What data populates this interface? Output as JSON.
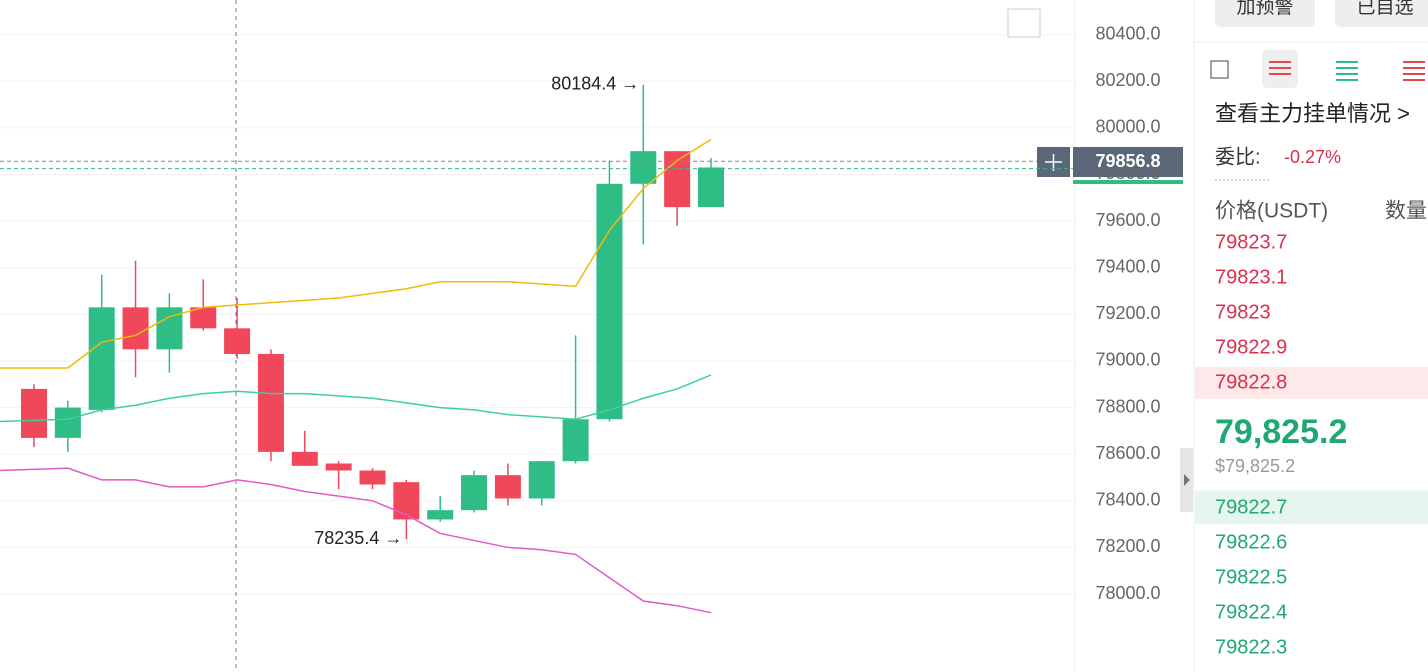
{
  "chart_data": {
    "type": "candlestick",
    "categories": [
      null,
      null,
      null,
      null,
      null,
      null,
      null,
      null,
      null,
      null,
      null,
      null,
      null,
      null,
      null,
      null,
      null,
      null,
      null,
      null,
      null
    ],
    "open": [
      78880,
      78670,
      78790,
      79230,
      79050,
      79230,
      79140,
      79030,
      78610,
      78560,
      78530,
      78480,
      78320,
      78360,
      78510,
      78410,
      78570,
      78750,
      79760,
      79900,
      79660
    ],
    "high": [
      78900,
      78830,
      79370,
      79430,
      79290,
      79350,
      79270,
      79050,
      78700,
      78570,
      78540,
      78490,
      78420,
      78530,
      78560,
      78570,
      79110,
      79860,
      80184.4,
      79900,
      79870
    ],
    "low": [
      78630,
      78610,
      78780,
      78930,
      78950,
      79130,
      79010,
      78570,
      78550,
      78450,
      78450,
      78235.4,
      78310,
      78350,
      78380,
      78380,
      78560,
      78740,
      79500,
      79580,
      79660
    ],
    "close": [
      78670,
      78800,
      79230,
      79050,
      79230,
      79140,
      79030,
      78610,
      78550,
      78530,
      78470,
      78320,
      78360,
      78510,
      78410,
      78570,
      78750,
      79760,
      79900,
      79660,
      79830
    ],
    "up_color": "#2ebd85",
    "down_color": "#f0485a",
    "series": [
      {
        "color": "#f0b90b",
        "values": [
          78970,
          78970,
          79080,
          79110,
          79190,
          79230,
          79240,
          79250,
          79260,
          79270,
          79290,
          79310,
          79340,
          79340,
          79340,
          79330,
          79320,
          79560,
          79740,
          79860,
          79950
        ]
      },
      {
        "color": "#3ecfa0",
        "values": [
          78740,
          78750,
          78790,
          78810,
          78840,
          78860,
          78870,
          78860,
          78860,
          78850,
          78840,
          78820,
          78800,
          78790,
          78770,
          78760,
          78750,
          78790,
          78840,
          78880,
          78940
        ]
      },
      {
        "color": "#e05ac8",
        "values": [
          78530,
          78540,
          78490,
          78490,
          78460,
          78460,
          78490,
          78470,
          78440,
          78420,
          78400,
          78340,
          78260,
          78230,
          78200,
          78190,
          78170,
          78070,
          77970,
          77950,
          77920
        ]
      }
    ],
    "ylim": [
      77820,
      80540
    ],
    "yticks": [
      {
        "value": 78000,
        "label": "78000.0"
      },
      {
        "value": 78200,
        "label": "78200.0"
      },
      {
        "value": 78400,
        "label": "78400.0"
      },
      {
        "value": 78600,
        "label": "78600.0"
      },
      {
        "value": 78800,
        "label": "78800.0"
      },
      {
        "value": 79000,
        "label": "79000.0"
      },
      {
        "value": 79200,
        "label": "79200.0"
      },
      {
        "value": 79400,
        "label": "79400.0"
      },
      {
        "value": 79600,
        "label": "79600.0"
      },
      {
        "value": 79800,
        "label": "79800.0"
      },
      {
        "value": 80000,
        "label": "80000.0"
      },
      {
        "value": 80200,
        "label": "80200.0"
      },
      {
        "value": 80400,
        "label": "80400.0"
      }
    ],
    "grid": true,
    "high_annotation": "80184.4 →",
    "low_annotation": "78235.4 →",
    "price_line": 79856.8,
    "last_price_line": 79825.2
  },
  "panel": {
    "buttons": [
      "加预警",
      "已自选"
    ],
    "link": "查看主力挂单情况 >",
    "ratio_label": "委比:",
    "ratio_value": "-0.27%",
    "headers": [
      "价格(USDT)",
      "数量"
    ],
    "asks": [
      79823.7,
      79823.1,
      79823.0,
      79822.9,
      79822.8
    ],
    "price": "79,825.2",
    "price_usd": "$79,825.2",
    "bids": [
      79822.7,
      79822.6,
      79822.5,
      79822.4,
      79822.3
    ]
  }
}
